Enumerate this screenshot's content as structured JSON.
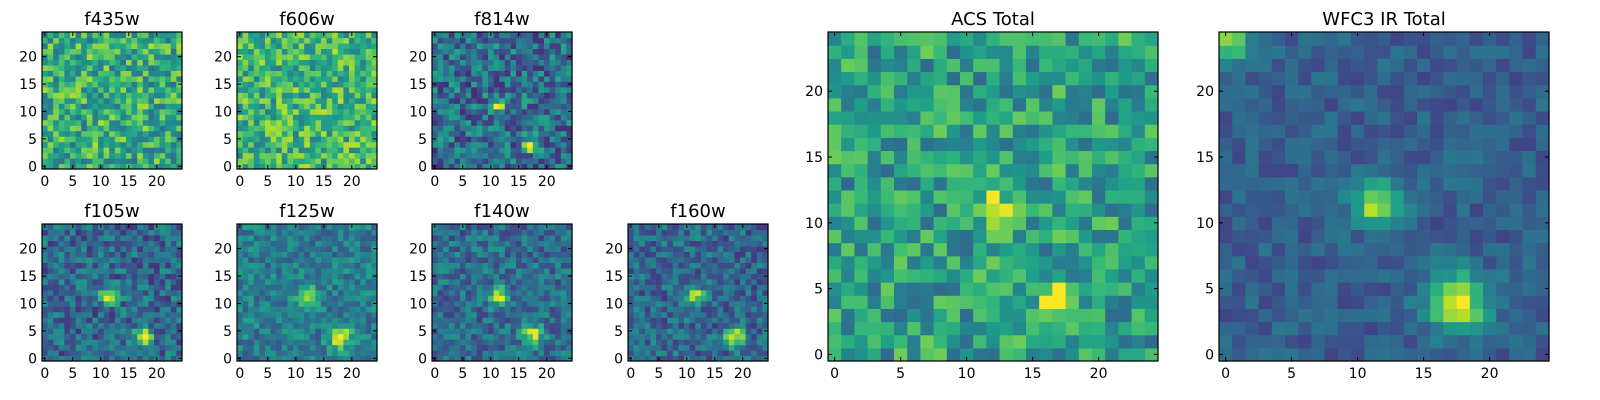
{
  "chart_data": [
    {
      "type": "heatmap",
      "title": "f435w",
      "xlim": [
        0,
        25
      ],
      "ylim": [
        0,
        25
      ],
      "xticks": [
        0,
        5,
        10,
        15,
        20
      ],
      "yticks": [
        0,
        5,
        10,
        15,
        20
      ],
      "xtick_labels": [
        "0",
        "5",
        "10",
        "15",
        "20"
      ],
      "ytick_labels": [
        "0",
        "5",
        "10",
        "15",
        "20"
      ],
      "colormap": "viridis",
      "grid": false,
      "sources": [],
      "background_level": 0.62,
      "noise_level": 0.26
    },
    {
      "type": "heatmap",
      "title": "f606w",
      "xlim": [
        0,
        25
      ],
      "ylim": [
        0,
        25
      ],
      "xticks": [
        0,
        5,
        10,
        15,
        20
      ],
      "yticks": [
        0,
        5,
        10,
        15,
        20
      ],
      "xtick_labels": [
        "0",
        "5",
        "10",
        "15",
        "20"
      ],
      "ytick_labels": [
        "0",
        "5",
        "10",
        "15",
        "20"
      ],
      "colormap": "viridis",
      "grid": false,
      "sources": [],
      "background_level": 0.66,
      "noise_level": 0.24
    },
    {
      "type": "heatmap",
      "title": "f814w",
      "xlim": [
        0,
        25
      ],
      "ylim": [
        0,
        25
      ],
      "xticks": [
        0,
        5,
        10,
        15,
        20
      ],
      "yticks": [
        0,
        5,
        10,
        15,
        20
      ],
      "xtick_labels": [
        "0",
        "5",
        "10",
        "15",
        "20"
      ],
      "ytick_labels": [
        "0",
        "5",
        "10",
        "15",
        "20"
      ],
      "colormap": "viridis",
      "grid": false,
      "sources": [
        {
          "x": 12,
          "y": 11.5,
          "amp": 0.6,
          "sigma": 0.9
        },
        {
          "x": 17.5,
          "y": 4.5,
          "amp": 0.6,
          "sigma": 0.9
        }
      ],
      "background_level": 0.36,
      "noise_level": 0.24
    },
    {
      "type": "heatmap",
      "title": "f105w",
      "xlim": [
        0,
        25
      ],
      "ylim": [
        0,
        25
      ],
      "xticks": [
        0,
        5,
        10,
        15,
        20
      ],
      "yticks": [
        0,
        5,
        10,
        15,
        20
      ],
      "xtick_labels": [
        "0",
        "5",
        "10",
        "15",
        "20"
      ],
      "ytick_labels": [
        "0",
        "5",
        "10",
        "15",
        "20"
      ],
      "colormap": "viridis",
      "grid": false,
      "sources": [
        {
          "x": 12,
          "y": 12,
          "amp": 0.6,
          "sigma": 1.1
        },
        {
          "x": 18,
          "y": 4.5,
          "amp": 0.65,
          "sigma": 1.2
        }
      ],
      "background_level": 0.34,
      "noise_level": 0.2
    },
    {
      "type": "heatmap",
      "title": "f125w",
      "xlim": [
        0,
        25
      ],
      "ylim": [
        0,
        25
      ],
      "xticks": [
        0,
        5,
        10,
        15,
        20
      ],
      "yticks": [
        0,
        5,
        10,
        15,
        20
      ],
      "xtick_labels": [
        "0",
        "5",
        "10",
        "15",
        "20"
      ],
      "ytick_labels": [
        "0",
        "5",
        "10",
        "15",
        "20"
      ],
      "colormap": "viridis",
      "grid": false,
      "sources": [
        {
          "x": 12.5,
          "y": 12,
          "amp": 0.55,
          "sigma": 1.1
        },
        {
          "x": 18.5,
          "y": 4.5,
          "amp": 0.6,
          "sigma": 1.4
        }
      ],
      "background_level": 0.42,
      "noise_level": 0.16
    },
    {
      "type": "heatmap",
      "title": "f140w",
      "xlim": [
        0,
        25
      ],
      "ylim": [
        0,
        25
      ],
      "xticks": [
        0,
        5,
        10,
        15,
        20
      ],
      "yticks": [
        0,
        5,
        10,
        15,
        20
      ],
      "xtick_labels": [
        "0",
        "5",
        "10",
        "15",
        "20"
      ],
      "ytick_labels": [
        "0",
        "5",
        "10",
        "15",
        "20"
      ],
      "colormap": "viridis",
      "grid": false,
      "sources": [
        {
          "x": 12,
          "y": 12,
          "amp": 0.6,
          "sigma": 1.1
        },
        {
          "x": 18,
          "y": 5,
          "amp": 0.6,
          "sigma": 1.2
        }
      ],
      "background_level": 0.36,
      "noise_level": 0.18
    },
    {
      "type": "heatmap",
      "title": "f160w",
      "xlim": [
        0,
        25
      ],
      "ylim": [
        0,
        25
      ],
      "xticks": [
        0,
        5,
        10,
        15,
        20
      ],
      "yticks": [
        0,
        5,
        10,
        15,
        20
      ],
      "xtick_labels": [
        "0",
        "5",
        "10",
        "15",
        "20"
      ],
      "ytick_labels": [
        "0",
        "5",
        "10",
        "15",
        "20"
      ],
      "colormap": "viridis",
      "grid": false,
      "sources": [
        {
          "x": 12,
          "y": 12,
          "amp": 0.6,
          "sigma": 1.1
        },
        {
          "x": 19,
          "y": 4.5,
          "amp": 0.65,
          "sigma": 1.2
        }
      ],
      "background_level": 0.34,
      "noise_level": 0.18
    },
    {
      "type": "heatmap",
      "title": "ACS Total",
      "xlim": [
        0,
        25
      ],
      "ylim": [
        0,
        25
      ],
      "xticks": [
        0,
        5,
        10,
        15,
        20
      ],
      "yticks": [
        0,
        5,
        10,
        15,
        20
      ],
      "xtick_labels": [
        "0",
        "5",
        "10",
        "15",
        "20"
      ],
      "ytick_labels": [
        "0",
        "5",
        "10",
        "15",
        "20"
      ],
      "colormap": "viridis",
      "grid": false,
      "sources": [
        {
          "x": 12.5,
          "y": 11.5,
          "amp": 0.55,
          "sigma": 0.9
        },
        {
          "x": 17.5,
          "y": 4.5,
          "amp": 0.55,
          "sigma": 1.0
        }
      ],
      "background_level": 0.56,
      "noise_level": 0.22
    },
    {
      "type": "heatmap",
      "title": "WFC3 IR Total",
      "xlim": [
        0,
        25
      ],
      "ylim": [
        0,
        25
      ],
      "xticks": [
        0,
        5,
        10,
        15,
        20
      ],
      "yticks": [
        0,
        5,
        10,
        15,
        20
      ],
      "xtick_labels": [
        "0",
        "5",
        "10",
        "15",
        "20"
      ],
      "ytick_labels": [
        "0",
        "5",
        "10",
        "15",
        "20"
      ],
      "colormap": "viridis",
      "grid": false,
      "sources": [
        {
          "x": 12,
          "y": 12,
          "amp": 0.6,
          "sigma": 1.3
        },
        {
          "x": 18,
          "y": 4.5,
          "amp": 0.65,
          "sigma": 1.6
        },
        {
          "x": 0.5,
          "y": 24.5,
          "amp": 0.55,
          "sigma": 1.4
        }
      ],
      "background_level": 0.3,
      "noise_level": 0.1
    }
  ]
}
